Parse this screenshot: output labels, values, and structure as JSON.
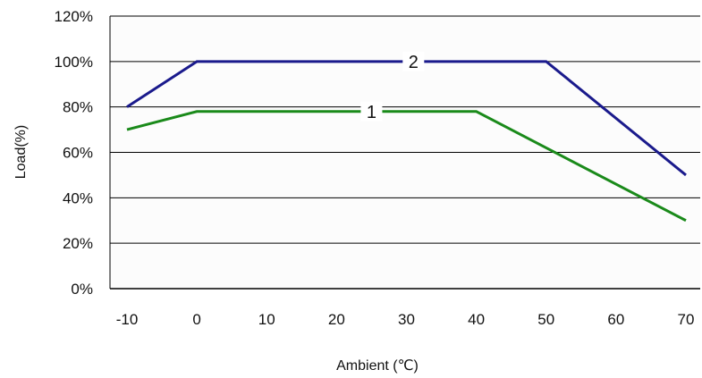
{
  "chart_data": {
    "type": "line",
    "xlabel": "Ambient (℃)",
    "ylabel": "Load(%)",
    "x_ticks": [
      "-10",
      "0",
      "10",
      "20",
      "30",
      "40",
      "50",
      "60",
      "70"
    ],
    "y_ticks": [
      "0%",
      "20%",
      "40%",
      "60%",
      "80%",
      "100%",
      "120%"
    ],
    "xlim": [
      -10,
      70
    ],
    "ylim": [
      0,
      120
    ],
    "grid": "horizontal",
    "legend": "none",
    "series": [
      {
        "name": "1",
        "color": "#1a8a1a",
        "points": [
          [
            -10,
            70
          ],
          [
            0,
            78
          ],
          [
            40,
            78
          ],
          [
            50,
            62
          ],
          [
            70,
            30
          ]
        ],
        "label_at": [
          25,
          78
        ]
      },
      {
        "name": "2",
        "color": "#1a1a8c",
        "points": [
          [
            -10,
            80
          ],
          [
            0,
            100
          ],
          [
            50,
            100
          ],
          [
            70,
            50
          ]
        ],
        "label_at": [
          31,
          100
        ]
      }
    ]
  }
}
